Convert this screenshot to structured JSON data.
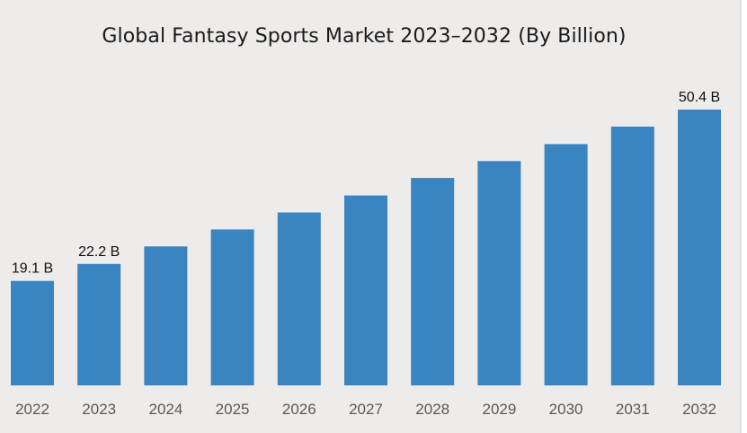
{
  "chart_data": {
    "type": "bar",
    "title": "Global Fantasy Sports Market 2023–2032 (By Billion)",
    "xlabel": "",
    "ylabel": "",
    "categories": [
      "2022",
      "2023",
      "2024",
      "2025",
      "2026",
      "2027",
      "2028",
      "2029",
      "2030",
      "2031",
      "2032"
    ],
    "values": [
      19.1,
      22.2,
      25.4,
      28.5,
      31.6,
      34.7,
      37.9,
      41.0,
      44.1,
      47.3,
      50.4
    ],
    "data_labels": [
      "19.1 B",
      "22.2 B",
      "",
      "",
      "",
      "",
      "",
      "",
      "",
      "",
      "50.4 B"
    ],
    "ylim": [
      0,
      50.4
    ],
    "grid": false,
    "legend": "none",
    "bar_color": "#3a84c1",
    "background_color": "#eeeceb"
  }
}
